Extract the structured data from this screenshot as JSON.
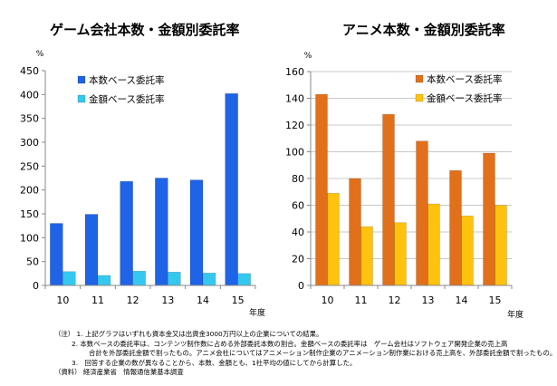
{
  "chart_data": [
    {
      "type": "bar",
      "title": "ゲーム会社本数・金額別委託率",
      "ylabel": "%",
      "xlabel": "年度",
      "categories": [
        "10",
        "11",
        "12",
        "13",
        "14",
        "15"
      ],
      "ylim": [
        0,
        450
      ],
      "yticks": [
        0,
        50,
        100,
        150,
        200,
        250,
        300,
        350,
        400,
        450
      ],
      "grid": false,
      "legend_position": "top-left",
      "series": [
        {
          "name": "本数ベース委託率",
          "color": "#1f63e6",
          "values": [
            130,
            149,
            218,
            225,
            221,
            402
          ]
        },
        {
          "name": "金額ベース委託率",
          "color": "#35c8ef",
          "values": [
            29,
            21,
            30,
            28,
            26,
            25
          ]
        }
      ]
    },
    {
      "type": "bar",
      "title": "アニメ本数・金額別委託率",
      "ylabel": "%",
      "xlabel": "年度",
      "categories": [
        "10",
        "11",
        "12",
        "13",
        "14",
        "15"
      ],
      "ylim": [
        0,
        160
      ],
      "yticks": [
        0,
        20,
        40,
        60,
        80,
        100,
        120,
        140,
        160
      ],
      "grid": true,
      "legend_position": "top-left",
      "series": [
        {
          "name": "本数ベース委託率",
          "color": "#e2701a",
          "values": [
            143,
            80,
            128,
            108,
            86,
            99
          ]
        },
        {
          "name": "金額ベース委託率",
          "color": "#ffc20e",
          "values": [
            69,
            44,
            47,
            61,
            52,
            60
          ]
        }
      ]
    }
  ],
  "notes": {
    "line1": "（注） 1. 上記グラフはいずれも資本金又は出資金3000万円以上の企業についての結果。",
    "line2": "2. 本数ベースの委託率は、コンテンツ制作数に占める外部委託本数の割合。金額ベースの委託率は　ゲーム会社はソフトウェア開発企業の売上高",
    "line3": "合計を外部委託金額で割ったもの。アニメ会社についてはアニメーション制作企業のアニメーション制作業における売上高を、外部委託金額で割ったもの。",
    "line4": "3.　回答する企業の数が異なることから、本数、金額とも、1社平均の値にしてから計算した。",
    "line5": "（資料） 経済産業省　情報通信業基本調査"
  }
}
